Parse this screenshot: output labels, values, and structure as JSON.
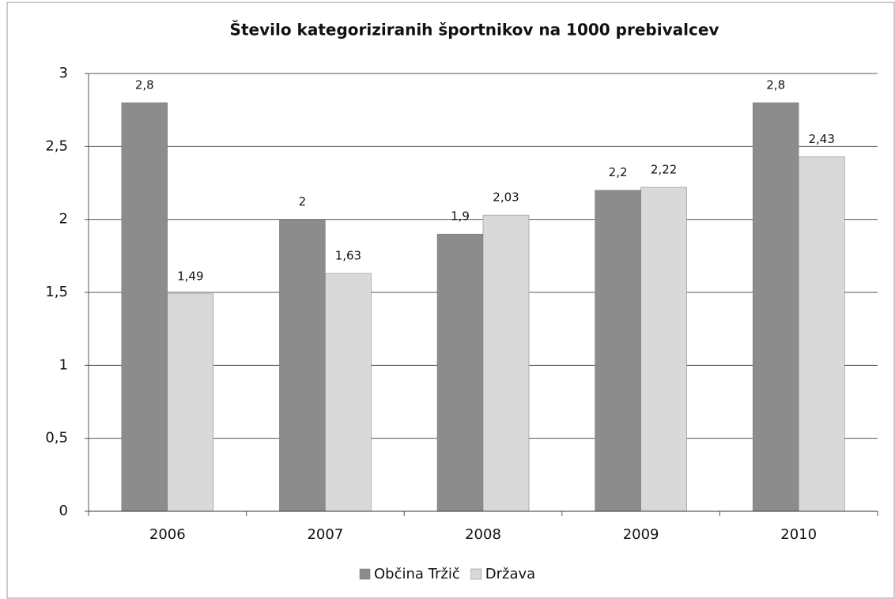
{
  "chart_data": {
    "type": "bar",
    "title": "Število kategoriziranih športnikov na 1000 prebivalcev",
    "categories": [
      "2006",
      "2007",
      "2008",
      "2009",
      "2010"
    ],
    "series": [
      {
        "name": "Občina Tržič",
        "color": "#8c8c8c",
        "values": [
          2.8,
          2,
          1.9,
          2.2,
          2.8
        ],
        "value_labels": [
          "2,8",
          "2",
          "1,9",
          "2,2",
          "2,8"
        ]
      },
      {
        "name": "Država",
        "color": "#d9d9d9",
        "values": [
          1.49,
          1.63,
          2.03,
          2.22,
          2.43
        ],
        "value_labels": [
          "1,49",
          "1,63",
          "2,03",
          "2,22",
          "2,43"
        ]
      }
    ],
    "ylim": [
      0,
      3
    ],
    "yticks": [
      0,
      {
        "value": 0.5,
        "label": "0,5"
      },
      1,
      {
        "value": 1.5,
        "label": "1,5"
      },
      2,
      {
        "value": 2.5,
        "label": "2,5"
      },
      3
    ],
    "grid": true,
    "legend": "bottom"
  }
}
